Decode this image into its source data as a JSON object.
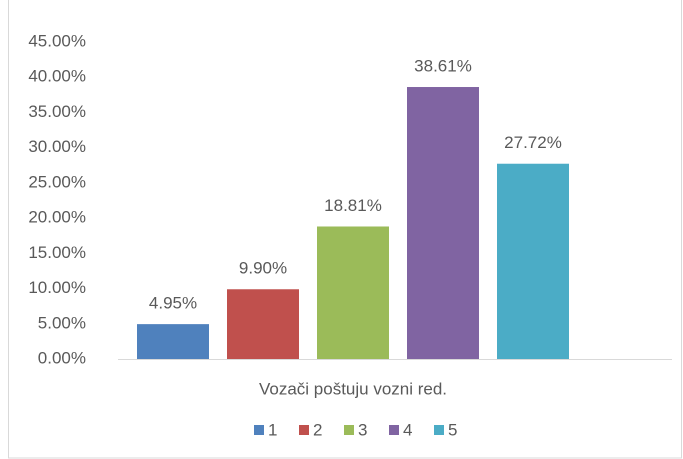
{
  "chart_data": {
    "type": "bar",
    "categories": [
      "Vozači poštuju vozni red."
    ],
    "series": [
      {
        "name": "1",
        "color": "#4f81bd",
        "values": [
          4.95
        ],
        "value_labels": [
          "4.95%"
        ]
      },
      {
        "name": "2",
        "color": "#c0504d",
        "values": [
          9.9
        ],
        "value_labels": [
          "9.90%"
        ]
      },
      {
        "name": "3",
        "color": "#9bbb59",
        "values": [
          18.81
        ],
        "value_labels": [
          "18.81%"
        ]
      },
      {
        "name": "4",
        "color": "#8064a2",
        "values": [
          38.61
        ],
        "value_labels": [
          "38.61%"
        ]
      },
      {
        "name": "5",
        "color": "#4bacc6",
        "values": [
          27.72
        ],
        "value_labels": [
          "27.72%"
        ]
      }
    ],
    "ylim": [
      0,
      45
    ],
    "yticks": [
      {
        "value": 0,
        "label": "0.00%"
      },
      {
        "value": 5,
        "label": "5.00%"
      },
      {
        "value": 10,
        "label": "10.00%"
      },
      {
        "value": 15,
        "label": "15.00%"
      },
      {
        "value": 20,
        "label": "20.00%"
      },
      {
        "value": 25,
        "label": "25.00%"
      },
      {
        "value": 30,
        "label": "30.00%"
      },
      {
        "value": 35,
        "label": "35.00%"
      },
      {
        "value": 40,
        "label": "40.00%"
      },
      {
        "value": 45,
        "label": "45.00%"
      }
    ],
    "grid": false,
    "legend": "bottom"
  }
}
